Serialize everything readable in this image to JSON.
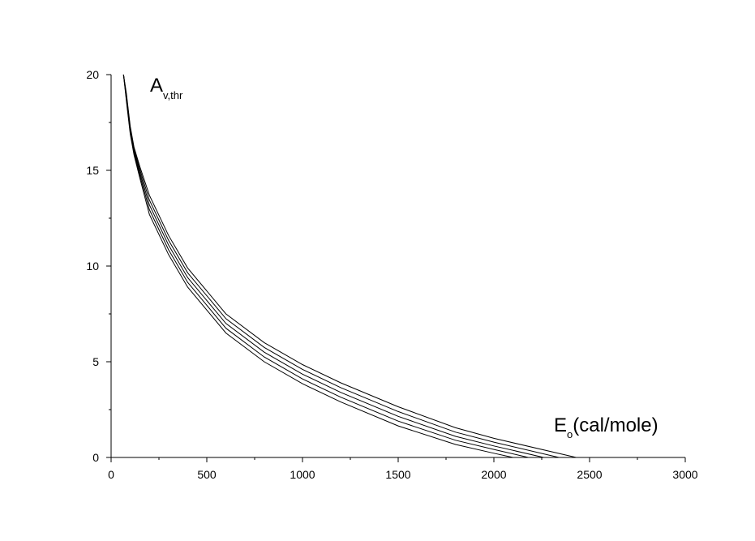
{
  "chart_data": {
    "type": "line",
    "title": "",
    "ylabel_main": "A",
    "ylabel_sub": "v,thr",
    "xlabel_main": "E",
    "xlabel_sub": "o",
    "xlabel_rest": "(cal/mole)",
    "xlim": [
      0,
      3000
    ],
    "ylim": [
      0,
      20
    ],
    "x_ticks": [
      0,
      500,
      1000,
      1500,
      2000,
      2500,
      3000
    ],
    "x_tick_labels": [
      "0",
      "500",
      "1000",
      "1500",
      "2000",
      "2500",
      "3000"
    ],
    "y_ticks": [
      0,
      5,
      10,
      15,
      20
    ],
    "y_tick_labels": [
      "0",
      "5",
      "10",
      "15",
      "20"
    ],
    "grid": false,
    "legend": "none",
    "series": [
      {
        "x": [
          65,
          80,
          100,
          120,
          150,
          200,
          300,
          400,
          600,
          800,
          1000,
          1200,
          1500,
          1800,
          2000,
          2100
        ],
        "y": [
          20,
          18.6,
          16.9,
          15.8,
          14.6,
          12.7,
          10.6,
          8.9,
          6.5,
          5.0,
          3.85,
          2.9,
          1.65,
          0.68,
          0.22,
          0
        ]
      },
      {
        "x": [
          65,
          80,
          100,
          120,
          150,
          200,
          300,
          400,
          600,
          800,
          1000,
          1200,
          1500,
          1800,
          2000,
          2180
        ],
        "y": [
          20,
          18.7,
          17.0,
          15.9,
          14.75,
          12.95,
          10.85,
          9.15,
          6.75,
          5.25,
          4.1,
          3.15,
          1.9,
          0.9,
          0.42,
          0
        ]
      },
      {
        "x": [
          65,
          80,
          100,
          120,
          150,
          200,
          300,
          400,
          600,
          800,
          1000,
          1200,
          1500,
          1800,
          2000,
          2260
        ],
        "y": [
          20,
          18.8,
          17.1,
          16.0,
          14.9,
          13.2,
          11.1,
          9.4,
          7.0,
          5.5,
          4.35,
          3.4,
          2.15,
          1.1,
          0.6,
          0
        ]
      },
      {
        "x": [
          65,
          80,
          100,
          120,
          150,
          200,
          300,
          400,
          600,
          800,
          1000,
          1200,
          1500,
          1800,
          2000,
          2340
        ],
        "y": [
          20,
          18.9,
          17.2,
          16.1,
          15.05,
          13.45,
          11.35,
          9.65,
          7.25,
          5.75,
          4.6,
          3.65,
          2.4,
          1.32,
          0.8,
          0
        ]
      },
      {
        "x": [
          65,
          80,
          100,
          120,
          150,
          200,
          300,
          400,
          600,
          800,
          1000,
          1200,
          1500,
          1800,
          2000,
          2430
        ],
        "y": [
          20,
          19.0,
          17.3,
          16.2,
          15.2,
          13.7,
          11.6,
          9.9,
          7.5,
          6.0,
          4.85,
          3.9,
          2.65,
          1.55,
          1.0,
          0
        ]
      }
    ]
  }
}
